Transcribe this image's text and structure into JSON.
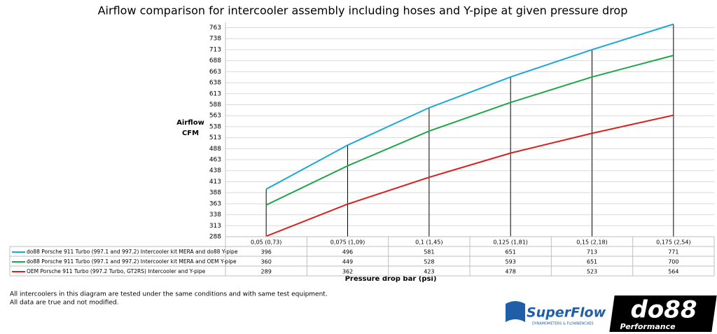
{
  "chart_data": {
    "type": "line",
    "title": "Airflow comparison for intercooler assembly including hoses and Y-pipe at given pressure drop",
    "y_label": "Airflow CFM",
    "x_label": "Pressure drop bar (psi)",
    "categories": [
      "0,05 (0,73)",
      "0,075 (1,09)",
      "0,1 (1,45)",
      "0,125 (1,81)",
      "0,15 (2,18)",
      "0,175 (2,54)"
    ],
    "series": [
      {
        "name": "do88 Porsche 911 Turbo (997.1 and 997.2) Intercooler kit MERA and do88 Y-pipe",
        "color": "#1aa9d6",
        "values": [
          396,
          496,
          581,
          651,
          713,
          771
        ]
      },
      {
        "name": "do88 Porsche 911 Turbo (997.1 and 997.2) Intercooler kit MERA and OEM Y-pipe",
        "color": "#1ea64a",
        "values": [
          360,
          449,
          528,
          593,
          651,
          700
        ]
      },
      {
        "name": "OEM Porsche 911 Turbo (997.2 Turbo,  GT2RS) Intercooler and Y-pipe",
        "color": "#d9201e",
        "values": [
          289,
          362,
          423,
          478,
          523,
          564
        ]
      }
    ],
    "ylim": [
      288,
      775
    ],
    "yticks": [
      288,
      313,
      338,
      363,
      388,
      413,
      438,
      463,
      488,
      513,
      538,
      563,
      588,
      613,
      638,
      663,
      688,
      713,
      738,
      763
    ],
    "grid": true,
    "drop_lines": true,
    "data_table": true,
    "notes": [
      "All intercoolers in this diagram are tested under the same conditions and with same test equipment.",
      "All data are true and not modified."
    ],
    "logos": {
      "superflow": "SuperFlow",
      "superflow_sub": "DYNAMOMETERS & FLOWBENCHES",
      "do88": "do88",
      "do88_sub": "Performance"
    }
  }
}
